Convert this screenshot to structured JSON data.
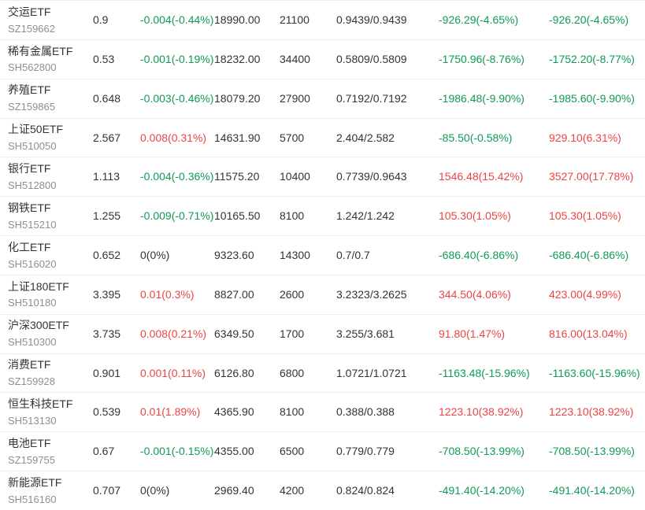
{
  "theme": {
    "up_color": "#ec4444",
    "down_color": "#0f9b57",
    "text_color": "#333333",
    "code_color": "#8f8f8f",
    "divider_color": "#ededed",
    "background": "#ffffff"
  },
  "table": {
    "rows": [
      {
        "name": "交运ETF",
        "code": "SZ159662",
        "price": "0.9",
        "change": "-0.004(-0.44%)",
        "change_dir": "down",
        "amount": "18990.00",
        "volume": "21100",
        "pair": "0.9439/0.9439",
        "flow1": "-926.29(-4.65%)",
        "flow1_dir": "down",
        "flow2": "-926.20(-4.65%)",
        "flow2_dir": "down"
      },
      {
        "name": "稀有金属ETF",
        "code": "SH562800",
        "price": "0.53",
        "change": "-0.001(-0.19%)",
        "change_dir": "down",
        "amount": "18232.00",
        "volume": "34400",
        "pair": "0.5809/0.5809",
        "flow1": "-1750.96(-8.76%)",
        "flow1_dir": "down",
        "flow2": "-1752.20(-8.77%)",
        "flow2_dir": "down"
      },
      {
        "name": "养殖ETF",
        "code": "SZ159865",
        "price": "0.648",
        "change": "-0.003(-0.46%)",
        "change_dir": "down",
        "amount": "18079.20",
        "volume": "27900",
        "pair": "0.7192/0.7192",
        "flow1": "-1986.48(-9.90%)",
        "flow1_dir": "down",
        "flow2": "-1985.60(-9.90%)",
        "flow2_dir": "down"
      },
      {
        "name": "上证50ETF",
        "code": "SH510050",
        "price": "2.567",
        "change": "0.008(0.31%)",
        "change_dir": "up",
        "amount": "14631.90",
        "volume": "5700",
        "pair": "2.404/2.582",
        "flow1": "-85.50(-0.58%)",
        "flow1_dir": "down",
        "flow2": "929.10(6.31%)",
        "flow2_dir": "up"
      },
      {
        "name": "银行ETF",
        "code": "SH512800",
        "price": "1.113",
        "change": "-0.004(-0.36%)",
        "change_dir": "down",
        "amount": "11575.20",
        "volume": "10400",
        "pair": "0.7739/0.9643",
        "flow1": "1546.48(15.42%)",
        "flow1_dir": "up",
        "flow2": "3527.00(17.78%)",
        "flow2_dir": "up"
      },
      {
        "name": "钢铁ETF",
        "code": "SH515210",
        "price": "1.255",
        "change": "-0.009(-0.71%)",
        "change_dir": "down",
        "amount": "10165.50",
        "volume": "8100",
        "pair": "1.242/1.242",
        "flow1": "105.30(1.05%)",
        "flow1_dir": "up",
        "flow2": "105.30(1.05%)",
        "flow2_dir": "up"
      },
      {
        "name": "化工ETF",
        "code": "SH516020",
        "price": "0.652",
        "change": "0(0%)",
        "change_dir": "flat",
        "amount": "9323.60",
        "volume": "14300",
        "pair": "0.7/0.7",
        "flow1": "-686.40(-6.86%)",
        "flow1_dir": "down",
        "flow2": "-686.40(-6.86%)",
        "flow2_dir": "down"
      },
      {
        "name": "上证180ETF",
        "code": "SH510180",
        "price": "3.395",
        "change": "0.01(0.3%)",
        "change_dir": "up",
        "amount": "8827.00",
        "volume": "2600",
        "pair": "3.2323/3.2625",
        "flow1": "344.50(4.06%)",
        "flow1_dir": "up",
        "flow2": "423.00(4.99%)",
        "flow2_dir": "up"
      },
      {
        "name": "沪深300ETF",
        "code": "SH510300",
        "price": "3.735",
        "change": "0.008(0.21%)",
        "change_dir": "up",
        "amount": "6349.50",
        "volume": "1700",
        "pair": "3.255/3.681",
        "flow1": "91.80(1.47%)",
        "flow1_dir": "up",
        "flow2": "816.00(13.04%)",
        "flow2_dir": "up"
      },
      {
        "name": "消费ETF",
        "code": "SZ159928",
        "price": "0.901",
        "change": "0.001(0.11%)",
        "change_dir": "up",
        "amount": "6126.80",
        "volume": "6800",
        "pair": "1.0721/1.0721",
        "flow1": "-1163.48(-15.96%)",
        "flow1_dir": "down",
        "flow2": "-1163.60(-15.96%)",
        "flow2_dir": "down"
      },
      {
        "name": "恒生科技ETF",
        "code": "SH513130",
        "price": "0.539",
        "change": "0.01(1.89%)",
        "change_dir": "up",
        "amount": "4365.90",
        "volume": "8100",
        "pair": "0.388/0.388",
        "flow1": "1223.10(38.92%)",
        "flow1_dir": "up",
        "flow2": "1223.10(38.92%)",
        "flow2_dir": "up"
      },
      {
        "name": "电池ETF",
        "code": "SZ159755",
        "price": "0.67",
        "change": "-0.001(-0.15%)",
        "change_dir": "down",
        "amount": "4355.00",
        "volume": "6500",
        "pair": "0.779/0.779",
        "flow1": "-708.50(-13.99%)",
        "flow1_dir": "down",
        "flow2": "-708.50(-13.99%)",
        "flow2_dir": "down"
      },
      {
        "name": "新能源ETF",
        "code": "SH516160",
        "price": "0.707",
        "change": "0(0%)",
        "change_dir": "flat",
        "amount": "2969.40",
        "volume": "4200",
        "pair": "0.824/0.824",
        "flow1": "-491.40(-14.20%)",
        "flow1_dir": "down",
        "flow2": "-491.40(-14.20%)",
        "flow2_dir": "down"
      }
    ]
  }
}
